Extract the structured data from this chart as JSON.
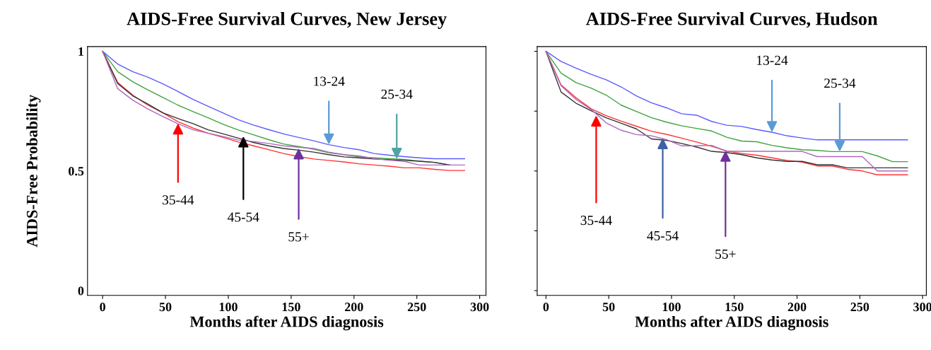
{
  "chart_data": [
    {
      "type": "line",
      "title": "AIDS-Free Survival Curves, New Jersey",
      "xlabel": "Months after AIDS diagnosis",
      "ylabel": "AIDS-Free Probability",
      "x": [
        0,
        12,
        24,
        36,
        48,
        60,
        72,
        84,
        96,
        108,
        120,
        132,
        144,
        156,
        168,
        180,
        192,
        204,
        216,
        228,
        240,
        252,
        264,
        276,
        288
      ],
      "xlim": [
        -12,
        305
      ],
      "ylim": [
        -0.02,
        1.02
      ],
      "xticks": [
        0,
        50,
        100,
        150,
        200,
        250,
        300
      ],
      "yticks": [
        0,
        0.5,
        1
      ],
      "series": [
        {
          "color": "#5b5bff",
          "values": [
            1.0,
            0.947,
            0.915,
            0.892,
            0.864,
            0.832,
            0.799,
            0.77,
            0.742,
            0.714,
            0.692,
            0.673,
            0.655,
            0.64,
            0.626,
            0.61,
            0.598,
            0.589,
            0.573,
            0.566,
            0.56,
            0.555,
            0.551,
            0.551,
            0.551
          ]
        },
        {
          "color": "#3fa33f",
          "values": [
            1.0,
            0.915,
            0.873,
            0.839,
            0.807,
            0.775,
            0.748,
            0.722,
            0.695,
            0.671,
            0.651,
            0.631,
            0.613,
            0.602,
            0.591,
            0.576,
            0.568,
            0.559,
            0.555,
            0.551,
            0.548,
            0.541,
            0.536,
            0.525,
            null
          ]
        },
        {
          "color": "#ff3333",
          "values": [
            1.0,
            0.87,
            0.817,
            0.775,
            0.743,
            0.706,
            0.679,
            0.658,
            0.64,
            0.621,
            0.605,
            0.589,
            0.573,
            0.56,
            0.55,
            0.544,
            0.538,
            0.53,
            0.525,
            0.52,
            0.513,
            0.513,
            0.507,
            0.502,
            0.502
          ]
        },
        {
          "color": "#333333",
          "values": [
            1.0,
            0.865,
            0.814,
            0.78,
            0.743,
            0.719,
            0.698,
            0.672,
            0.655,
            0.637,
            0.619,
            0.605,
            0.594,
            0.587,
            0.579,
            0.568,
            0.559,
            0.555,
            0.55,
            0.547,
            0.544,
            0.541,
            0.536,
            0.525,
            null
          ]
        },
        {
          "color": "#b067c0",
          "values": [
            1.0,
            0.844,
            0.796,
            0.759,
            0.727,
            0.697,
            0.672,
            0.658,
            0.644,
            0.629,
            0.623,
            0.615,
            0.605,
            0.599,
            0.594,
            0.579,
            0.568,
            0.563,
            0.552,
            0.545,
            0.54,
            0.525,
            0.525,
            0.525,
            0.525
          ]
        }
      ],
      "annotations": [
        {
          "text": "13-24",
          "x": 180,
          "y": 0.61
        },
        {
          "text": "25-34",
          "x": 234,
          "y": 0.55
        },
        {
          "text": "35-44",
          "x": 60,
          "y": 0.699
        },
        {
          "text": "45-54",
          "x": 112,
          "y": 0.645
        },
        {
          "text": "55+",
          "x": 156,
          "y": 0.595
        }
      ]
    },
    {
      "type": "line",
      "title": "AIDS-Free Survival Curves, Hudson",
      "xlabel": "Months after AIDS diagnosis",
      "x": [
        0,
        12,
        24,
        36,
        48,
        60,
        72,
        84,
        96,
        108,
        120,
        132,
        144,
        156,
        168,
        180,
        192,
        204,
        216,
        228,
        240,
        252,
        264,
        276,
        288
      ],
      "xlim": [
        -7,
        303
      ],
      "ylim": [
        -0.02,
        1.02
      ],
      "xticks": [
        0,
        50,
        100,
        150,
        200,
        250,
        300
      ],
      "yticks": [
        {
          "value": 0,
          "label": null
        },
        {
          "value": 0.25,
          "label": null
        },
        {
          "value": 0.5,
          "label": null
        },
        {
          "value": 0.75,
          "label": null
        },
        {
          "value": 1,
          "label": null
        }
      ],
      "tick_labels": "x",
      "series": [
        {
          "color": "#5b5bff",
          "values": [
            1.0,
            0.958,
            0.93,
            0.904,
            0.881,
            0.851,
            0.814,
            0.785,
            0.764,
            0.739,
            0.733,
            0.707,
            0.691,
            0.686,
            0.673,
            0.662,
            0.647,
            0.638,
            0.63,
            0.63,
            0.63,
            0.63,
            0.63,
            0.63,
            0.63
          ]
        },
        {
          "color": "#3fa33f",
          "values": [
            1.0,
            0.909,
            0.869,
            0.846,
            0.817,
            0.775,
            0.749,
            0.723,
            0.704,
            0.689,
            0.678,
            0.667,
            0.641,
            0.625,
            0.622,
            0.607,
            0.597,
            0.589,
            0.586,
            0.581,
            0.581,
            0.581,
            0.563,
            0.539,
            0.539
          ]
        },
        {
          "color": "#ff3333",
          "values": [
            1.0,
            0.86,
            0.806,
            0.76,
            0.731,
            0.708,
            0.687,
            0.666,
            0.653,
            0.637,
            0.621,
            0.603,
            0.584,
            0.573,
            0.566,
            0.555,
            0.544,
            0.537,
            0.521,
            0.521,
            0.507,
            0.5,
            0.484,
            0.484,
            0.484
          ]
        },
        {
          "color": "#333333",
          "values": [
            1.0,
            0.83,
            0.783,
            0.752,
            0.722,
            0.699,
            0.676,
            0.634,
            0.628,
            0.615,
            0.6,
            0.582,
            0.577,
            0.568,
            0.555,
            0.546,
            0.54,
            0.54,
            0.526,
            0.526,
            0.513,
            0.513,
            0.513,
            0.513,
            0.513
          ]
        },
        {
          "color": "#b067c0",
          "values": [
            1.0,
            0.856,
            0.799,
            0.757,
            0.701,
            0.67,
            0.652,
            0.647,
            0.631,
            0.605,
            0.605,
            0.607,
            0.582,
            0.582,
            0.582,
            0.582,
            0.582,
            0.582,
            0.56,
            0.56,
            0.56,
            0.56,
            0.5,
            0.5,
            0.5
          ]
        }
      ],
      "annotations": [
        {
          "text": "13-24",
          "x": 180,
          "y": 0.662
        },
        {
          "text": "25-34",
          "x": 234,
          "y": 0.581
        },
        {
          "text": "35-44",
          "x": 40,
          "y": 0.732
        },
        {
          "text": "45-54",
          "x": 93,
          "y": 0.638
        },
        {
          "text": "55+",
          "x": 143,
          "y": 0.585
        }
      ]
    }
  ]
}
